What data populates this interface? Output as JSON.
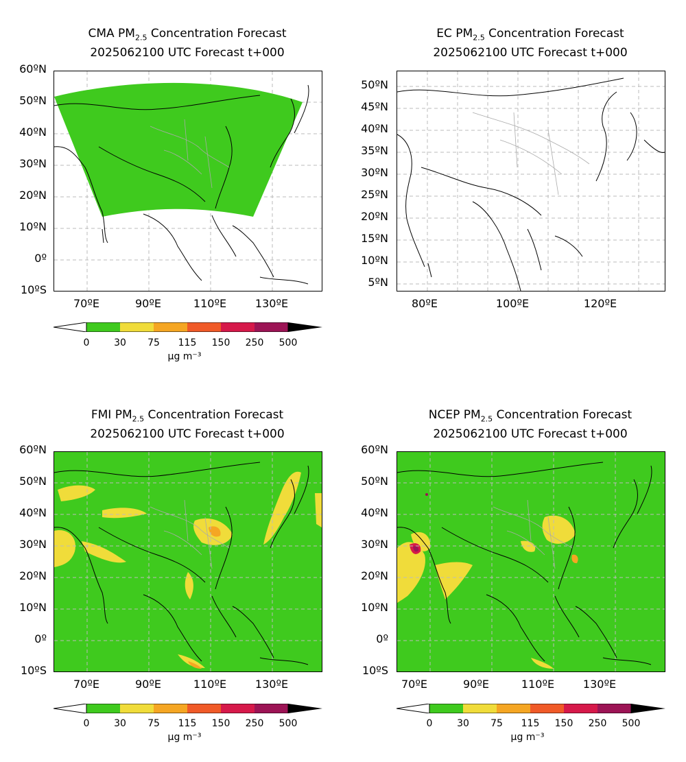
{
  "panels": [
    {
      "id": "cma",
      "title_prefix": "CMA PM",
      "title_sub": "2.5",
      "title_suffix": " Concentration Forecast",
      "title_line2": "2025062100 UTC Forecast t+000",
      "y_ticks": [
        "60ºN",
        "50ºN",
        "40ºN",
        "30ºN",
        "20ºN",
        "10ºN",
        "0º",
        "10ºS"
      ],
      "x_ticks": [
        "70ºE",
        "90ºE",
        "110ºE",
        "130ºE"
      ]
    },
    {
      "id": "ec",
      "title_prefix": "EC PM",
      "title_sub": "2.5",
      "title_suffix": " Concentration Forecast",
      "title_line2": "2025062100 UTC Forecast t+000",
      "y_ticks": [
        "50ºN",
        "45ºN",
        "40ºN",
        "35ºN",
        "30ºN",
        "25ºN",
        "20ºN",
        "15ºN",
        "10ºN",
        "5ºN"
      ],
      "x_ticks": [
        "80ºE",
        "100ºE",
        "120ºE"
      ]
    },
    {
      "id": "fmi",
      "title_prefix": "FMI PM",
      "title_sub": "2.5",
      "title_suffix": " Concentration Forecast",
      "title_line2": "2025062100 UTC Forecast t+000",
      "y_ticks": [
        "60ºN",
        "50ºN",
        "40ºN",
        "30ºN",
        "20ºN",
        "10ºN",
        "0º",
        "10ºS"
      ],
      "x_ticks": [
        "70ºE",
        "90ºE",
        "110ºE",
        "130ºE"
      ]
    },
    {
      "id": "ncep",
      "title_prefix": "NCEP PM",
      "title_sub": "2.5",
      "title_suffix": " Concentration Forecast",
      "title_line2": "2025062100 UTC Forecast t+000",
      "y_ticks": [
        "60ºN",
        "50ºN",
        "40ºN",
        "30ºN",
        "20ºN",
        "10ºN",
        "0º",
        "10ºS"
      ],
      "x_ticks": [
        "70ºE",
        "90ºE",
        "110ºE",
        "130ºE"
      ]
    }
  ],
  "colorbar": {
    "labels": [
      "0",
      "30",
      "75",
      "115",
      "150",
      "250",
      "500"
    ],
    "colors": [
      "#3fca1e",
      "#f0dc3a",
      "#f5a623",
      "#f05a28",
      "#d6194a",
      "#9c1455",
      "#000000"
    ],
    "unit": "µg m⁻³"
  },
  "colors": {
    "land_fill": "#3fca1e",
    "moderate": "#f0dc3a",
    "high": "#f5a623",
    "very_high": "#9c1455",
    "coast": "#000000",
    "province": "#aaaaaa"
  }
}
